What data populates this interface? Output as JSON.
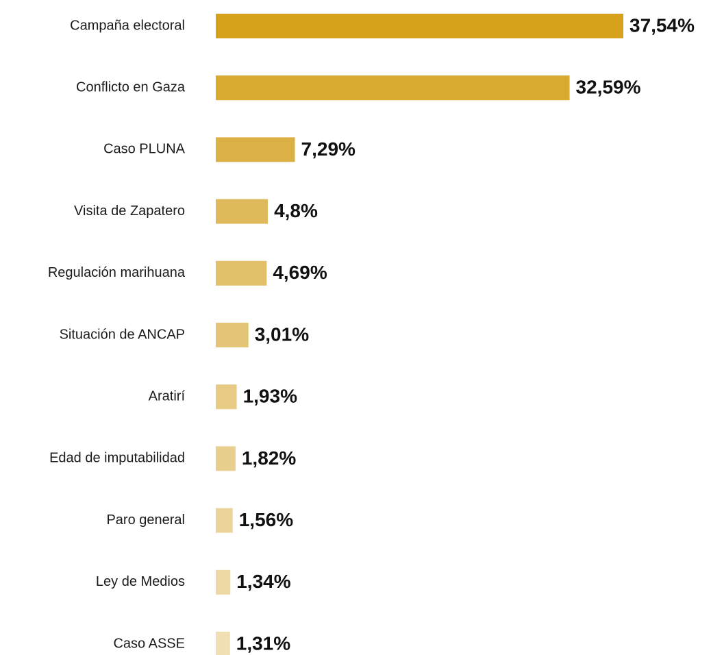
{
  "chart_data": {
    "type": "barh",
    "categories": [
      "Campaña electoral",
      "Conflicto en Gaza",
      "Caso PLUNA",
      "Visita de Zapatero",
      "Regulación marihuana",
      "Situación de ANCAP",
      "Aratirí",
      "Edad de imputabilidad",
      "Paro general",
      "Ley de Medios",
      "Caso ASSE"
    ],
    "values": [
      37.54,
      32.59,
      7.29,
      4.8,
      4.69,
      3.01,
      1.93,
      1.82,
      1.56,
      1.34,
      1.31
    ],
    "value_labels": [
      "37,54%",
      "32,59%",
      "7,29%",
      "4,8%",
      "4,69%",
      "3,01%",
      "1,93%",
      "1,82%",
      "1,56%",
      "1,34%",
      "1,31%"
    ],
    "colors": [
      "#d6a21b",
      "#d9aa30",
      "#dbb145",
      "#dfba5c",
      "#e2c06a",
      "#e4c577",
      "#e7ca84",
      "#e9cf8e",
      "#ebd49a",
      "#eed9a5",
      "#f0dfb2"
    ]
  }
}
